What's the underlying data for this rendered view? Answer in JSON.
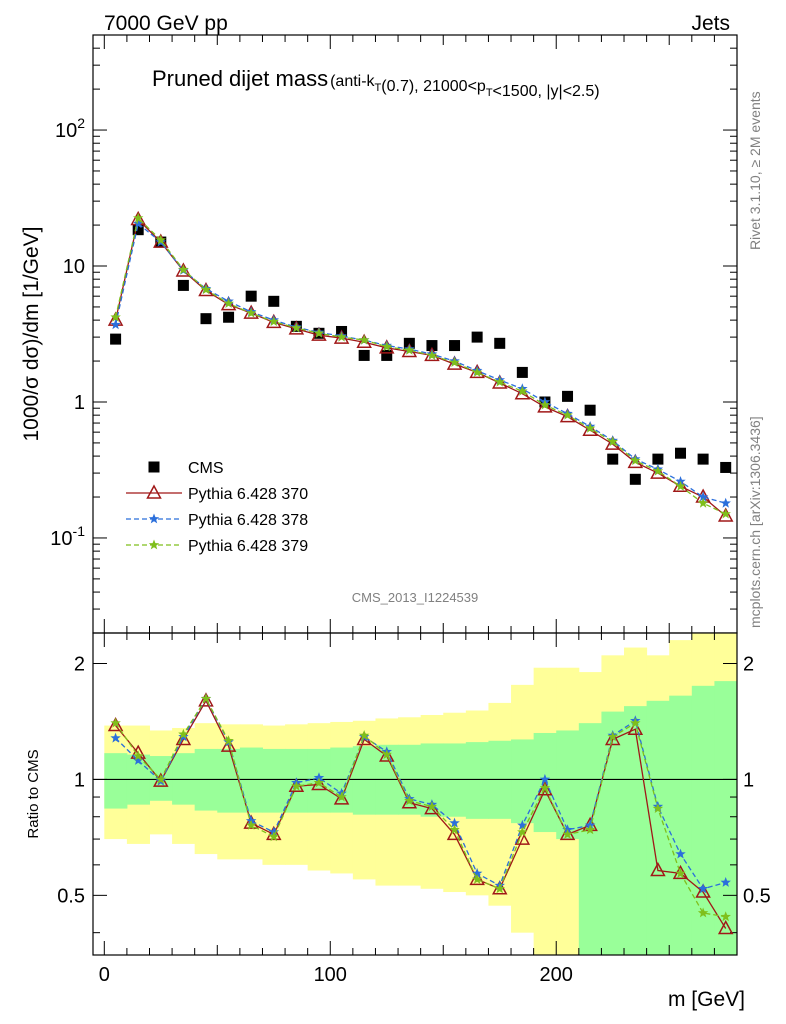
{
  "header": {
    "left": "7000 GeV pp",
    "right": "Jets",
    "side_top": "Rivet 3.1.10, ≥ 2M events",
    "side_bottom": "mcplots.cern.ch [arXiv:1306.3436]",
    "analysis_id": "CMS_2013_I1224539"
  },
  "colors": {
    "cms": "#000000",
    "p370": "#a01818",
    "p378": "#2b6fdb",
    "p379": "#7fbf1c",
    "band_yellow": "#ffff99",
    "band_green": "#99ff99"
  },
  "chart_data": [
    {
      "type": "scatter",
      "title_main": "Pruned dijet mass",
      "title_sub": "(anti-k_T(0.7), 21000<p_T<1500, |y|<2.5)",
      "ylabel": "1000/σ dσ)/dm [1/GeV]",
      "yscale": "log",
      "ylim": [
        0.02,
        500
      ],
      "xlim": [
        -5,
        280
      ],
      "yticks": [
        "10^-1",
        "1",
        "10",
        "10^2"
      ],
      "legend_position": "center-left",
      "x": [
        5,
        15,
        25,
        35,
        45,
        55,
        65,
        75,
        85,
        95,
        105,
        115,
        125,
        135,
        145,
        155,
        165,
        175,
        185,
        195,
        205,
        215,
        225,
        235,
        245,
        255,
        265,
        275
      ],
      "series": [
        {
          "name": "CMS",
          "marker": "square",
          "values": [
            2.9,
            18.5,
            15.0,
            7.2,
            4.1,
            4.2,
            6.0,
            5.5,
            3.6,
            3.2,
            3.3,
            2.2,
            2.2,
            2.7,
            2.6,
            2.6,
            3.0,
            2.7,
            1.65,
            1.0,
            1.1,
            0.87,
            0.38,
            0.27,
            0.38,
            0.42,
            0.38,
            0.33
          ]
        },
        {
          "name": "Pythia 6.428 370",
          "marker": "triangle",
          "values": [
            4.0,
            22.0,
            15.0,
            9.2,
            6.6,
            5.2,
            4.5,
            3.85,
            3.45,
            3.1,
            2.95,
            2.75,
            2.5,
            2.35,
            2.2,
            1.9,
            1.65,
            1.38,
            1.15,
            0.92,
            0.78,
            0.62,
            0.49,
            0.36,
            0.3,
            0.24,
            0.2,
            0.145
          ]
        },
        {
          "name": "Pythia 6.428 378",
          "marker": "star",
          "values": [
            3.7,
            20.5,
            15.0,
            9.3,
            6.8,
            5.5,
            4.6,
            4.0,
            3.55,
            3.25,
            3.05,
            2.85,
            2.6,
            2.45,
            2.25,
            2.0,
            1.7,
            1.45,
            1.25,
            1.0,
            0.82,
            0.66,
            0.52,
            0.38,
            0.32,
            0.26,
            0.2,
            0.18
          ]
        },
        {
          "name": "Pythia 6.428 379",
          "marker": "star",
          "values": [
            4.2,
            22.5,
            15.5,
            9.4,
            6.7,
            5.3,
            4.5,
            3.9,
            3.5,
            3.2,
            3.0,
            2.85,
            2.55,
            2.4,
            2.2,
            1.95,
            1.65,
            1.4,
            1.2,
            0.95,
            0.8,
            0.64,
            0.51,
            0.37,
            0.31,
            0.24,
            0.18,
            0.15
          ]
        }
      ]
    },
    {
      "type": "line",
      "ylabel": "Ratio to CMS",
      "xlabel": "m [GeV]",
      "yscale": "log",
      "ylim": [
        0.35,
        2.4
      ],
      "xlim": [
        -5,
        280
      ],
      "yticks": [
        "0.5",
        "1",
        "2"
      ],
      "xticks": [
        "0",
        "100",
        "200"
      ],
      "reference_line": 1,
      "bin_edges": [
        0,
        10,
        20,
        30,
        40,
        50,
        60,
        70,
        80,
        90,
        100,
        110,
        120,
        130,
        140,
        150,
        160,
        170,
        180,
        190,
        200,
        210,
        220,
        230,
        240,
        250,
        260,
        270,
        280
      ],
      "band_green": {
        "lower": [
          0.84,
          0.86,
          0.88,
          0.86,
          0.83,
          0.82,
          0.82,
          0.82,
          0.82,
          0.82,
          0.82,
          0.81,
          0.81,
          0.81,
          0.8,
          0.8,
          0.79,
          0.79,
          0.77,
          0.73,
          0.7,
          0.3,
          0.3,
          0.3,
          0.3,
          0.3,
          0.3,
          0.3
        ],
        "upper": [
          1.17,
          1.16,
          1.15,
          1.17,
          1.2,
          1.2,
          1.21,
          1.2,
          1.2,
          1.2,
          1.21,
          1.22,
          1.23,
          1.23,
          1.24,
          1.24,
          1.25,
          1.26,
          1.27,
          1.32,
          1.34,
          1.4,
          1.5,
          1.55,
          1.6,
          1.65,
          1.75,
          1.8
        ]
      },
      "band_yellow": {
        "lower": [
          0.7,
          0.68,
          0.72,
          0.68,
          0.64,
          0.62,
          0.62,
          0.6,
          0.6,
          0.58,
          0.57,
          0.55,
          0.53,
          0.53,
          0.52,
          0.51,
          0.5,
          0.47,
          0.4,
          0.3,
          0.3,
          0.3,
          0.3,
          0.3,
          0.3,
          0.3,
          0.3,
          0.3
        ],
        "upper": [
          1.38,
          1.38,
          1.34,
          1.36,
          1.4,
          1.39,
          1.39,
          1.38,
          1.39,
          1.4,
          1.41,
          1.42,
          1.44,
          1.45,
          1.47,
          1.49,
          1.51,
          1.58,
          1.76,
          1.95,
          1.95,
          1.9,
          2.1,
          2.2,
          2.1,
          2.3,
          2.5,
          2.5
        ]
      },
      "x": [
        5,
        15,
        25,
        35,
        45,
        55,
        65,
        75,
        85,
        95,
        105,
        115,
        125,
        135,
        145,
        155,
        165,
        175,
        185,
        195,
        205,
        215,
        225,
        235,
        245,
        255,
        265,
        275
      ],
      "series": [
        {
          "name": "Pythia 6.428 370",
          "marker": "triangle",
          "values": [
            1.38,
            1.17,
            0.99,
            1.27,
            1.6,
            1.22,
            0.77,
            0.72,
            0.96,
            0.97,
            0.89,
            1.27,
            1.15,
            0.87,
            0.84,
            0.72,
            0.55,
            0.52,
            0.7,
            0.94,
            0.72,
            0.76,
            1.27,
            1.35,
            0.58,
            0.57,
            0.51,
            0.41
          ]
        },
        {
          "name": "Pythia 6.428 378",
          "marker": "star",
          "values": [
            1.28,
            1.12,
            0.99,
            1.29,
            1.62,
            1.25,
            0.78,
            0.73,
            0.98,
            1.01,
            0.92,
            1.29,
            1.18,
            0.89,
            0.86,
            0.77,
            0.57,
            0.53,
            0.76,
            1.0,
            0.74,
            0.76,
            1.3,
            1.42,
            0.85,
            0.64,
            0.52,
            0.54
          ]
        },
        {
          "name": "Pythia 6.428 379",
          "marker": "star",
          "values": [
            1.4,
            1.15,
            1.0,
            1.31,
            1.62,
            1.26,
            0.76,
            0.71,
            0.96,
            0.98,
            0.9,
            1.3,
            1.16,
            0.88,
            0.85,
            0.74,
            0.55,
            0.52,
            0.73,
            0.95,
            0.72,
            0.74,
            1.29,
            1.4,
            0.84,
            0.57,
            0.45,
            0.44
          ]
        }
      ]
    }
  ]
}
